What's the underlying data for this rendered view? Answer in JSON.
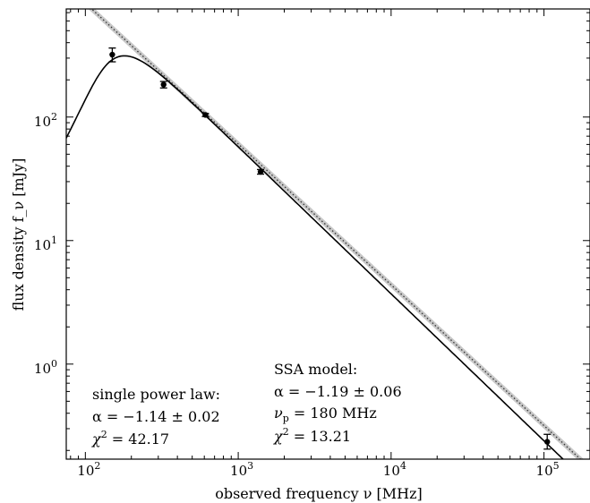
{
  "chart_data": {
    "type": "scatter",
    "title": "",
    "xlabel": "observed frequency ν [MHz]",
    "ylabel": "flux density f_ν [mJy]",
    "xscale": "log",
    "yscale": "log",
    "xlim": [
      75,
      200000
    ],
    "ylim": [
      0.17,
      750
    ],
    "grid": false,
    "x_ticks": [
      {
        "value": 100,
        "base": "10",
        "exp": "2"
      },
      {
        "value": 1000,
        "base": "10",
        "exp": "3"
      },
      {
        "value": 10000,
        "base": "10",
        "exp": "4"
      },
      {
        "value": 100000,
        "base": "10",
        "exp": "5"
      }
    ],
    "y_ticks": [
      {
        "value": 1,
        "base": "10",
        "exp": "0"
      },
      {
        "value": 10,
        "base": "10",
        "exp": "1"
      },
      {
        "value": 100,
        "base": "10",
        "exp": "2"
      }
    ],
    "measurements": {
      "x": [
        150,
        325,
        610,
        1400,
        105000
      ],
      "y": [
        320,
        183,
        104,
        36,
        0.235
      ],
      "yerr_low": [
        280,
        172,
        101,
        34.5,
        0.205
      ],
      "yerr_high": [
        362,
        194,
        107,
        37.6,
        0.27
      ]
    },
    "power_law_fit": {
      "alpha": -1.14,
      "norm_at_1000MHz": 60.5,
      "style": "dotted with grey confidence band"
    },
    "ssa_fit": {
      "alpha": -1.19,
      "nu_p_MHz": 180,
      "peak_mJy": 313,
      "style": "solid black"
    }
  },
  "annotations": {
    "powerlaw": {
      "heading": "single power law:",
      "alpha_prefix": "α = −1.14 ± 0.02",
      "chi_label": "χ",
      "chi_value": " = 42.17"
    },
    "ssa": {
      "heading": "SSA model:",
      "alpha_prefix": "α = −1.19 ± 0.06",
      "nu_symbol": "ν",
      "nu_sub": "p",
      "nu_value": " = 180 MHz",
      "chi_label": "χ",
      "chi_value": " = 13.21"
    }
  }
}
